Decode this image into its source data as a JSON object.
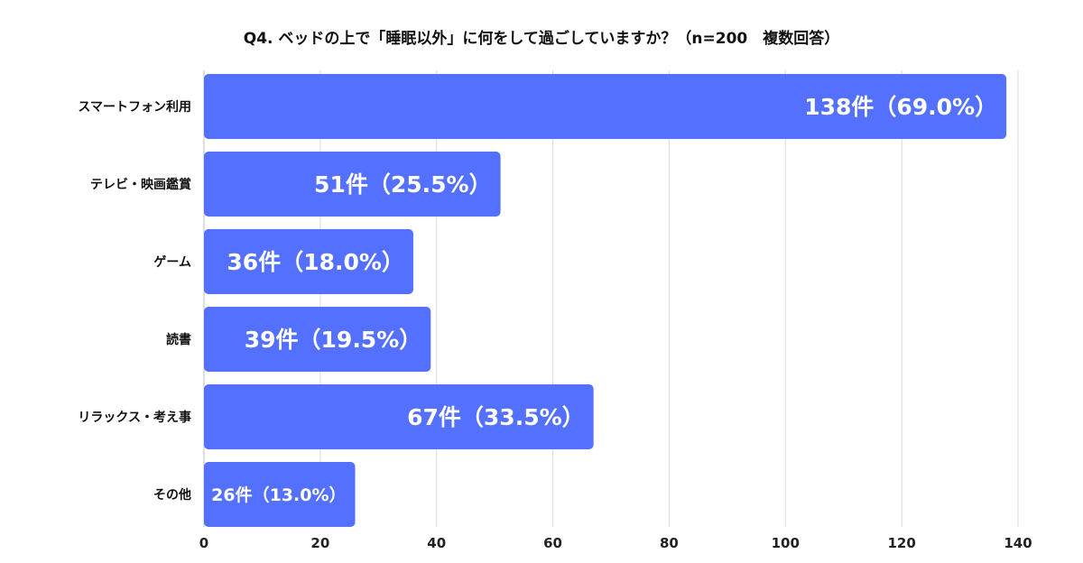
{
  "chart_data": {
    "type": "bar",
    "orientation": "horizontal",
    "title": "Q4. ベッドの上で「睡眠以外」に何をして過ごしていますか？（n=200　複数回答）",
    "categories": [
      "スマートフォン利用",
      "テレビ・映画鑑賞",
      "ゲーム",
      "読書",
      "リラックス・考え事",
      "その他"
    ],
    "values": [
      138,
      51,
      36,
      39,
      67,
      26
    ],
    "data_labels": [
      "138件（69.0%）",
      "51件（25.5%）",
      "36件（18.0%）",
      "39件（19.5%）",
      "67件（33.5%）",
      "26件（13.0%）"
    ],
    "xlim": [
      0,
      140
    ],
    "xticks": [
      0,
      20,
      40,
      60,
      80,
      100,
      120,
      140
    ],
    "xlabel": "",
    "ylabel": "",
    "grid": true,
    "legend": "none",
    "colors": {
      "bar": "#5470ff",
      "grid": "#d9d9d9",
      "axis": "#bdbdbd"
    }
  }
}
